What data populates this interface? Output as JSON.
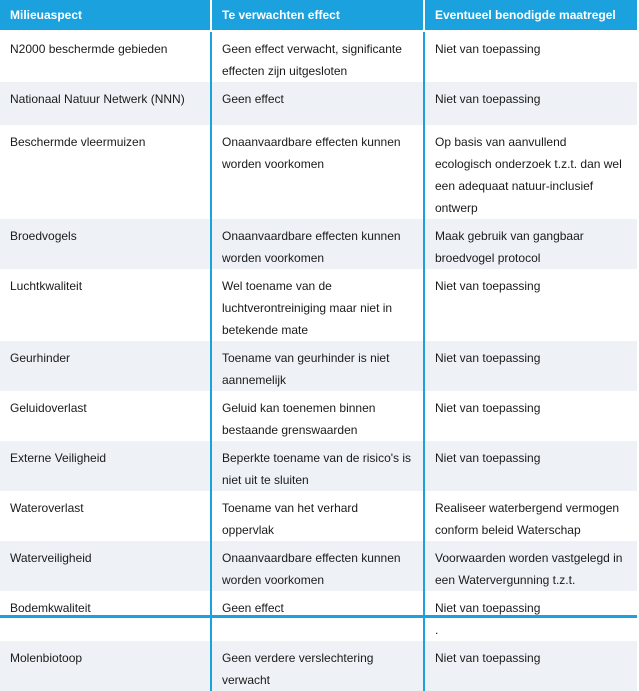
{
  "header": {
    "col1": "Milieuaspect",
    "col2": "Te verwachten effect",
    "col3": "Eventueel benodigde maatregel"
  },
  "rows": [
    [
      "N2000 beschermde gebieden",
      "Geen effect verwacht, significante\neffecten zijn uitgesloten",
      "Niet van toepassing"
    ],
    [
      "Nationaal Natuur Netwerk (NNN)",
      "Geen effect",
      "Niet van toepassing"
    ],
    [
      "Beschermde vleermuizen",
      "Onaanvaardbare effecten kunnen\nworden voorkomen",
      "Op basis van aanvullend\necologisch onderzoek t.z.t. dan wel\neen adequaat natuur-inclusief\nontwerp"
    ],
    [
      "Broedvogels",
      "Onaanvaardbare effecten kunnen\nworden voorkomen",
      "Maak gebruik van gangbaar\nbroedvogel protocol"
    ],
    [
      "Luchtkwaliteit",
      "Wel toename van de\nluchtverontreiniging maar niet in\nbetekende mate",
      "Niet van toepassing"
    ],
    [
      "Geurhinder",
      "Toename van geurhinder is niet\naannemelijk",
      "Niet van toepassing"
    ],
    [
      "Geluidoverlast",
      "Geluid kan toenemen binnen\nbestaande grenswaarden",
      "Niet van toepassing"
    ],
    [
      "Externe Veiligheid",
      "Beperkte toename van de risico's is\nniet uit te sluiten",
      "Niet van toepassing"
    ],
    [
      "Wateroverlast",
      "Toename van het verhard\noppervlak",
      "Realiseer waterbergend vermogen\nconform beleid Waterschap"
    ],
    [
      "Waterveiligheid",
      "Onaanvaardbare effecten kunnen\nworden voorkomen",
      "Voorwaarden worden vastgelegd in\neen Watervergunning t.z.t."
    ],
    [
      "Bodemkwaliteit",
      "Geen effect",
      "Niet van toepassing\n."
    ],
    [
      "Molenbiotoop",
      "Geen verdere verslechtering\nverwacht",
      "Niet van toepassing"
    ]
  ],
  "colors": {
    "accent": "#1ba1de",
    "stripe": "#eef2f7"
  }
}
